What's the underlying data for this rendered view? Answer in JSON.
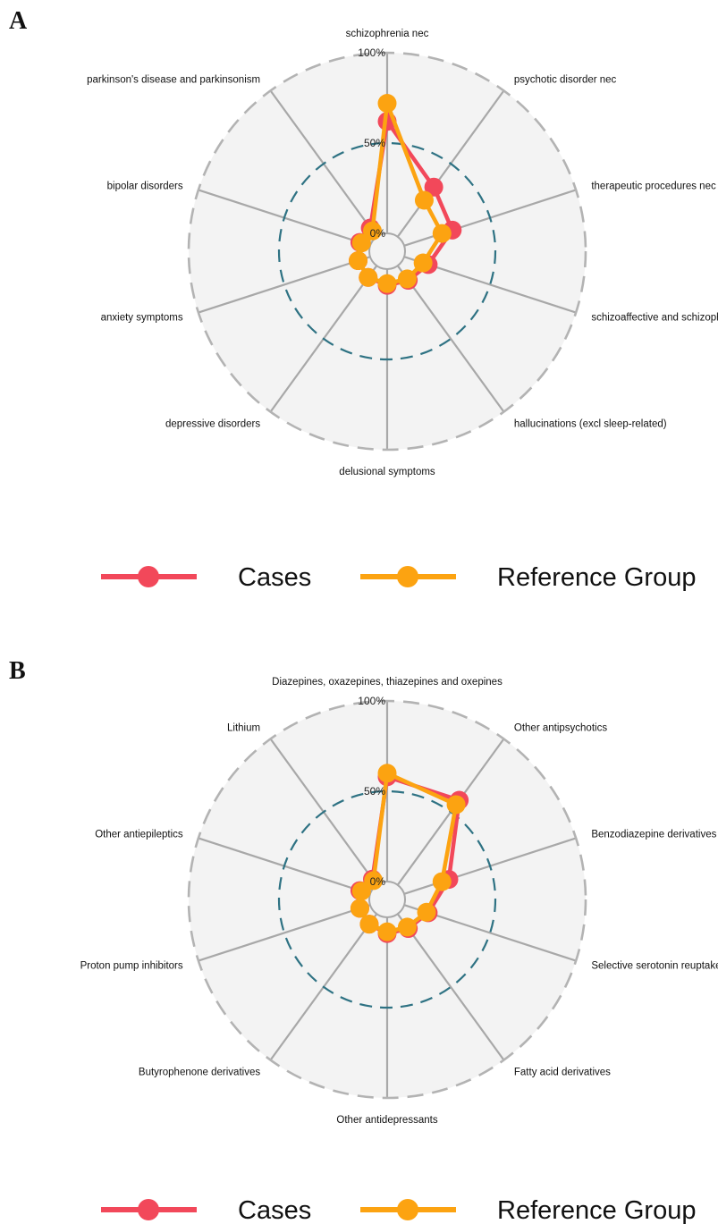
{
  "chart_data": [
    {
      "panel": "A",
      "type": "radar",
      "categories": [
        "schizophrenia nec",
        "psychotic disorder nec",
        "therapeutic procedures nec",
        "schizoaffective and schizophreniform disorders",
        "hallucinations (excl sleep-related)",
        "delusional symptoms",
        "depressive disorders",
        "anxiety symptoms",
        "bipolar disorders",
        "parkinson's disease and parkinsonism"
      ],
      "ticks": [
        "0%",
        "50%",
        "100%"
      ],
      "rlim": [
        0,
        100
      ],
      "grid": true,
      "legend_position": "bottom",
      "series": [
        {
          "name": "Cases",
          "color": "#f2485a",
          "values": [
            62,
            34,
            28,
            14,
            10,
            9,
            8,
            7,
            6,
            6
          ]
        },
        {
          "name": "Reference Group",
          "color": "#fca311",
          "values": [
            72,
            25,
            22,
            11,
            9,
            8,
            8,
            7,
            5,
            4
          ]
        }
      ]
    },
    {
      "panel": "B",
      "type": "radar",
      "categories": [
        "Diazepines, oxazepines, thiazepines and oxepines",
        "Other antipsychotics",
        "Benzodiazepine derivatives",
        "Selective serotonin reuptake inhibitors",
        "Fatty acid derivatives",
        "Other antidepressants",
        "Butyrophenone derivatives",
        "Proton pump inhibitors",
        "Other antiepileptics",
        "Lithium"
      ],
      "ticks": [
        "0%",
        "50%",
        "100%"
      ],
      "rlim": [
        0,
        100
      ],
      "grid": true,
      "legend_position": "bottom",
      "series": [
        {
          "name": "Cases",
          "color": "#f2485a",
          "values": [
            58,
            58,
            26,
            14,
            10,
            9,
            7,
            6,
            6,
            4
          ]
        },
        {
          "name": "Reference Group",
          "color": "#fca311",
          "values": [
            60,
            55,
            22,
            13,
            9,
            8,
            7,
            6,
            5,
            3
          ]
        }
      ]
    }
  ]
}
